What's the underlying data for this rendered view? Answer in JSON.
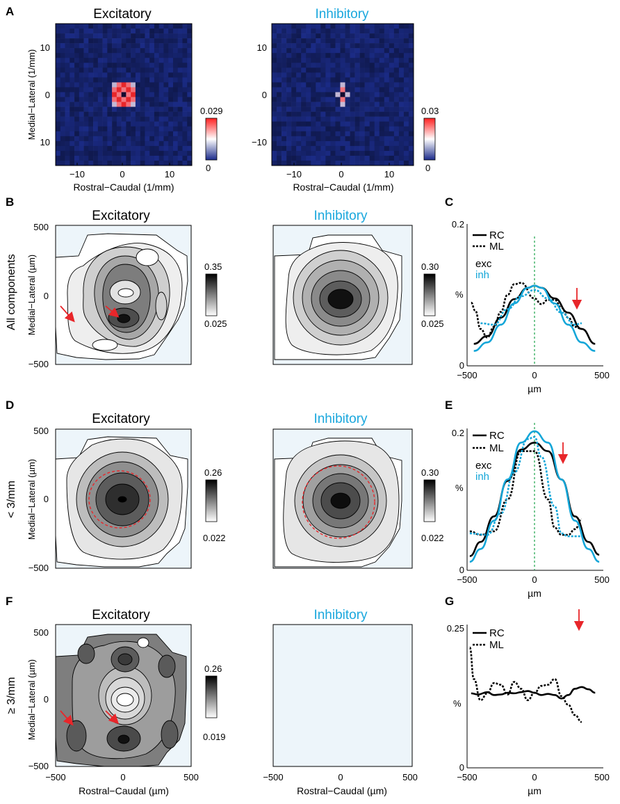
{
  "panel_letters": {
    "A": "A",
    "B": "B",
    "C": "C",
    "D": "D",
    "E": "E",
    "F": "F",
    "G": "G"
  },
  "row_labels": {
    "B": "All components",
    "D": "< 3/mm",
    "F": "≥ 3/mm"
  },
  "colors": {
    "exc_title": "#000000",
    "inh_title": "#1aa7dd",
    "cyan": "#14a6d8",
    "red": "#e8262a",
    "green_dashed": "#1aa34a",
    "contour_bg": "#edf5fa",
    "heat_blue": "#2a3b9a"
  },
  "chart_data": [
    {
      "id": "A-exc",
      "type": "heatmap",
      "title": "Excitatory",
      "xlabel": "Rostral−Caudal (1/mm)",
      "ylabel": "Medial−Lateral (1/mm)",
      "xticks": [
        "−10",
        "0",
        "10"
      ],
      "yticks": [
        "10",
        "0",
        "10"
      ],
      "xlim": [
        -15,
        15
      ],
      "ylim": [
        -15,
        15
      ],
      "colorbar": {
        "max": "0.029",
        "min": "0"
      },
      "peak_pattern": "ring around center"
    },
    {
      "id": "A-inh",
      "type": "heatmap",
      "title": "Inhibitory",
      "xlabel": "Rostral−Caudal (1/mm)",
      "ylabel": "",
      "xticks": [
        "−10",
        "0",
        "10"
      ],
      "yticks": [
        "10",
        "0",
        "−10"
      ],
      "xlim": [
        -15,
        15
      ],
      "ylim": [
        -15,
        15
      ],
      "colorbar": {
        "max": "0.03",
        "min": "0"
      },
      "peak_pattern": "compact center"
    },
    {
      "id": "B-exc",
      "type": "contour",
      "title": "Excitatory",
      "ylabel": "Medial−Lateral (µm)",
      "yticks": [
        "500",
        "0",
        "−500"
      ],
      "colorbar": {
        "max": "0.35",
        "min": "0.025"
      }
    },
    {
      "id": "B-inh",
      "type": "contour",
      "title": "Inhibitory",
      "colorbar": {
        "max": "0.30",
        "min": "0.025"
      }
    },
    {
      "id": "C",
      "type": "line",
      "xlabel": "µm",
      "ylabel": "%",
      "xticks": [
        "−500",
        "0",
        "500"
      ],
      "yticks": [
        "0.2",
        "0"
      ],
      "xlim": [
        -500,
        500
      ],
      "ylim": [
        0,
        0.2
      ],
      "legend": [
        "RC",
        "ML"
      ],
      "group_labels": [
        "exc",
        "inh"
      ],
      "series": [
        {
          "name": "exc RC",
          "x": [
            -450,
            -350,
            -250,
            -150,
            -50,
            0,
            50,
            150,
            250,
            350,
            450
          ],
          "values": [
            0.031,
            0.042,
            0.068,
            0.094,
            0.11,
            0.113,
            0.11,
            0.095,
            0.075,
            0.052,
            0.031
          ]
        },
        {
          "name": "exc ML",
          "x": [
            -470,
            -440,
            -400,
            -350,
            -300,
            -250,
            -200,
            -150,
            -100,
            0,
            50,
            100,
            150,
            200,
            250,
            300,
            350
          ],
          "values": [
            0.089,
            0.078,
            0.052,
            0.04,
            0.055,
            0.076,
            0.1,
            0.115,
            0.117,
            0.095,
            0.087,
            0.093,
            0.093,
            0.082,
            0.068,
            0.055,
            0.052
          ]
        },
        {
          "name": "inh RC",
          "x": [
            -450,
            -350,
            -250,
            -150,
            -50,
            0,
            50,
            150,
            250,
            350,
            450
          ],
          "values": [
            0.021,
            0.033,
            0.058,
            0.088,
            0.11,
            0.113,
            0.11,
            0.088,
            0.058,
            0.033,
            0.021
          ]
        },
        {
          "name": "inh ML",
          "x": [
            -400,
            -300,
            -200,
            -100,
            0,
            100,
            200,
            300,
            350
          ],
          "values": [
            0.06,
            0.058,
            0.08,
            0.098,
            0.107,
            0.095,
            0.075,
            0.058,
            0.06
          ]
        }
      ]
    },
    {
      "id": "D-exc",
      "type": "contour",
      "title": "Excitatory",
      "ylabel": "Medial−Lateral (µm)",
      "yticks": [
        "500",
        "0",
        "−500"
      ],
      "colorbar": {
        "max": "0.26",
        "min": "0.022"
      }
    },
    {
      "id": "D-inh",
      "type": "contour",
      "title": "Inhibitory",
      "colorbar": {
        "max": "0.30",
        "min": "0.022"
      }
    },
    {
      "id": "E",
      "type": "line",
      "xlabel": "µm",
      "ylabel": "%",
      "xticks": [
        "−500",
        "0",
        "500"
      ],
      "yticks": [
        "0.2",
        "0"
      ],
      "xlim": [
        -500,
        500
      ],
      "ylim": [
        0,
        0.2
      ],
      "legend": [
        "RC",
        "ML"
      ],
      "group_labels": [
        "exc",
        "inh"
      ],
      "series": [
        {
          "name": "exc RC",
          "x": [
            -480,
            -400,
            -300,
            -200,
            -100,
            0,
            100,
            200,
            300,
            400,
            480
          ],
          "values": [
            0.02,
            0.04,
            0.076,
            0.126,
            0.17,
            0.18,
            0.168,
            0.128,
            0.076,
            0.04,
            0.022
          ]
        },
        {
          "name": "exc ML",
          "x": [
            -480,
            -400,
            -300,
            -200,
            -100,
            0,
            100,
            150,
            200,
            250,
            300,
            350
          ],
          "values": [
            0.055,
            0.05,
            0.055,
            0.1,
            0.168,
            0.168,
            0.1,
            0.06,
            0.05,
            0.05,
            0.058,
            0.072
          ]
        },
        {
          "name": "inh RC",
          "x": [
            -480,
            -400,
            -300,
            -200,
            -100,
            0,
            100,
            200,
            300,
            400,
            480
          ],
          "values": [
            0.012,
            0.03,
            0.07,
            0.128,
            0.18,
            0.196,
            0.18,
            0.128,
            0.07,
            0.03,
            0.012
          ]
        },
        {
          "name": "inh ML",
          "x": [
            -480,
            -350,
            -250,
            -150,
            -50,
            0,
            50,
            150,
            200,
            250,
            300,
            350
          ],
          "values": [
            0.052,
            0.05,
            0.08,
            0.138,
            0.185,
            0.188,
            0.16,
            0.09,
            0.052,
            0.048,
            0.048,
            0.048
          ]
        }
      ]
    },
    {
      "id": "F-exc",
      "type": "contour",
      "title": "Excitatory",
      "xlabel": "Rostral−Caudal (µm)",
      "ylabel": "Medial−Lateral (µm)",
      "xticks": [
        "−500",
        "0",
        "500"
      ],
      "yticks": [
        "500",
        "0",
        "−500"
      ],
      "colorbar": {
        "max": "0.26",
        "min": "0.019"
      }
    },
    {
      "id": "F-inh",
      "type": "contour",
      "title": "Inhibitory",
      "xlabel": "Rostral−Caudal (µm)",
      "xticks": [
        "−500",
        "0",
        "500"
      ]
    },
    {
      "id": "G",
      "type": "line",
      "xlabel": "µm",
      "ylabel": "%",
      "xticks": [
        "−500",
        "0",
        "500"
      ],
      "yticks": [
        "0.25",
        "0"
      ],
      "xlim": [
        -500,
        500
      ],
      "ylim": [
        0,
        0.25
      ],
      "legend": [
        "RC",
        "ML"
      ],
      "series": [
        {
          "name": "RC",
          "x": [
            -470,
            -420,
            -350,
            -300,
            -250,
            -200,
            -150,
            -100,
            -50,
            0,
            50,
            100,
            150,
            200,
            250,
            300,
            350,
            400,
            450
          ],
          "values": [
            0.13,
            0.128,
            0.132,
            0.127,
            0.128,
            0.131,
            0.13,
            0.132,
            0.134,
            0.131,
            0.127,
            0.129,
            0.127,
            0.121,
            0.127,
            0.138,
            0.141,
            0.137,
            0.131
          ]
        },
        {
          "name": "ML",
          "x": [
            -480,
            -450,
            -400,
            -350,
            -300,
            -250,
            -200,
            -150,
            -100,
            -50,
            0,
            50,
            100,
            150,
            200,
            250,
            300,
            350
          ],
          "values": [
            0.21,
            0.155,
            0.118,
            0.13,
            0.148,
            0.145,
            0.128,
            0.15,
            0.138,
            0.118,
            0.131,
            0.143,
            0.145,
            0.155,
            0.125,
            0.11,
            0.092,
            0.08
          ]
        }
      ]
    }
  ]
}
